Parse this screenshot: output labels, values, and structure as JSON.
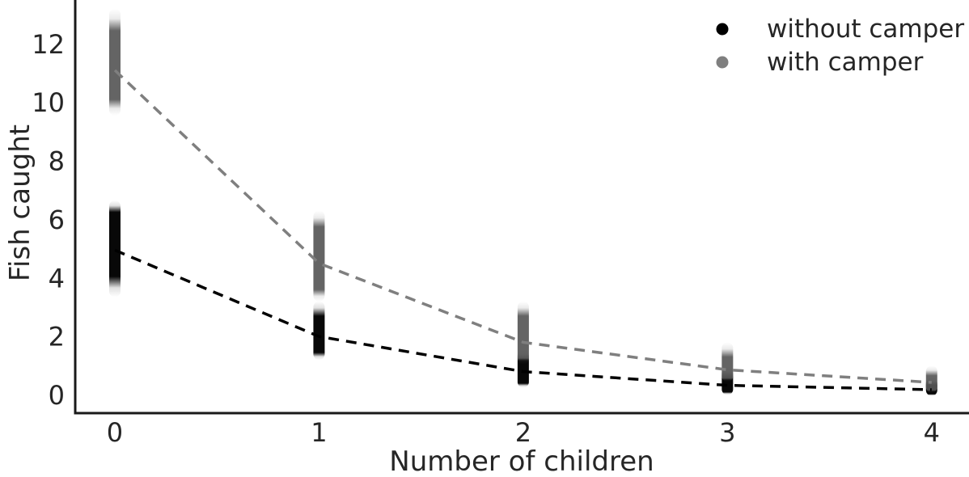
{
  "figure": {
    "background": "#ffffff",
    "text_color": "#262626",
    "spine_color": "#1a1a1a"
  },
  "chart_data": {
    "type": "scatter",
    "title": "",
    "xlabel": "Number of children",
    "ylabel": "Fish caught",
    "x": [
      0,
      1,
      2,
      3,
      4
    ],
    "xtick_labels": [
      "0",
      "1",
      "2",
      "3",
      "4"
    ],
    "ytick_values": [
      0,
      2,
      4,
      6,
      8,
      10,
      12
    ],
    "ytick_labels": [
      "0",
      "2",
      "4",
      "6",
      "8",
      "10",
      "12"
    ],
    "xlim": [
      -0.194,
      4.183
    ],
    "ylim": [
      -0.62,
      13.5
    ],
    "grid": false,
    "line_style": "dashed",
    "legend": {
      "position": "upper right",
      "entries": [
        {
          "label": "without camper",
          "color": "#000000"
        },
        {
          "label": "with camper",
          "color": "#7f7f7f"
        }
      ]
    },
    "series": [
      {
        "name": "without camper",
        "marker_color": "#000000",
        "cluster_color": "#000000",
        "line_color": "#000000",
        "core_alpha": 0.97,
        "medians": [
          4.95,
          2.0,
          0.8,
          0.33,
          0.18
        ],
        "dense_range": [
          [
            4.05,
            6.25
          ],
          [
            1.45,
            2.7
          ],
          [
            0.4,
            1.2
          ],
          [
            0.1,
            0.6
          ],
          [
            0.03,
            0.33
          ]
        ],
        "full_range": [
          [
            3.35,
            6.65
          ],
          [
            1.2,
            3.2
          ],
          [
            0.25,
            1.55
          ],
          [
            0.0,
            0.95
          ],
          [
            -0.03,
            0.6
          ]
        ]
      },
      {
        "name": "with camper",
        "marker_color": "#7f7f7f",
        "cluster_color": "#565656",
        "line_color": "#7f7f7f",
        "core_alpha": 0.92,
        "medians": [
          11.1,
          4.5,
          1.8,
          0.86,
          0.43
        ],
        "dense_range": [
          [
            10.1,
            12.45
          ],
          [
            3.6,
            5.75
          ],
          [
            1.3,
            2.7
          ],
          [
            0.58,
            1.3
          ],
          [
            0.17,
            0.66
          ]
        ],
        "full_range": [
          [
            9.55,
            13.2
          ],
          [
            3.2,
            6.3
          ],
          [
            1.05,
            3.2
          ],
          [
            0.45,
            1.8
          ],
          [
            0.08,
            1.0
          ]
        ]
      }
    ]
  }
}
